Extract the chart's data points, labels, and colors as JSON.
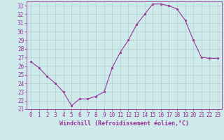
{
  "x": [
    0,
    1,
    2,
    3,
    4,
    5,
    6,
    7,
    8,
    9,
    10,
    11,
    12,
    13,
    14,
    15,
    16,
    17,
    18,
    19,
    20,
    21,
    22,
    23
  ],
  "y": [
    26.5,
    25.8,
    24.8,
    24.0,
    23.0,
    21.4,
    22.2,
    22.2,
    22.5,
    23.0,
    25.8,
    27.6,
    29.0,
    30.8,
    32.0,
    33.2,
    33.2,
    33.0,
    32.6,
    31.3,
    29.0,
    27.0,
    26.9,
    26.9
  ],
  "line_color": "#993399",
  "marker": "s",
  "marker_size": 2,
  "xlim": [
    -0.5,
    23.5
  ],
  "ylim": [
    21,
    33.5
  ],
  "yticks": [
    21,
    22,
    23,
    24,
    25,
    26,
    27,
    28,
    29,
    30,
    31,
    32,
    33
  ],
  "xticks": [
    0,
    1,
    2,
    3,
    4,
    5,
    6,
    7,
    8,
    9,
    10,
    11,
    12,
    13,
    14,
    15,
    16,
    17,
    18,
    19,
    20,
    21,
    22,
    23
  ],
  "xlabel": "Windchill (Refroidissement éolien,°C)",
  "bg_color": "#ceeaea",
  "grid_color": "#b0d0d0",
  "text_color": "#993399",
  "label_fontsize": 6,
  "tick_fontsize": 5.5
}
